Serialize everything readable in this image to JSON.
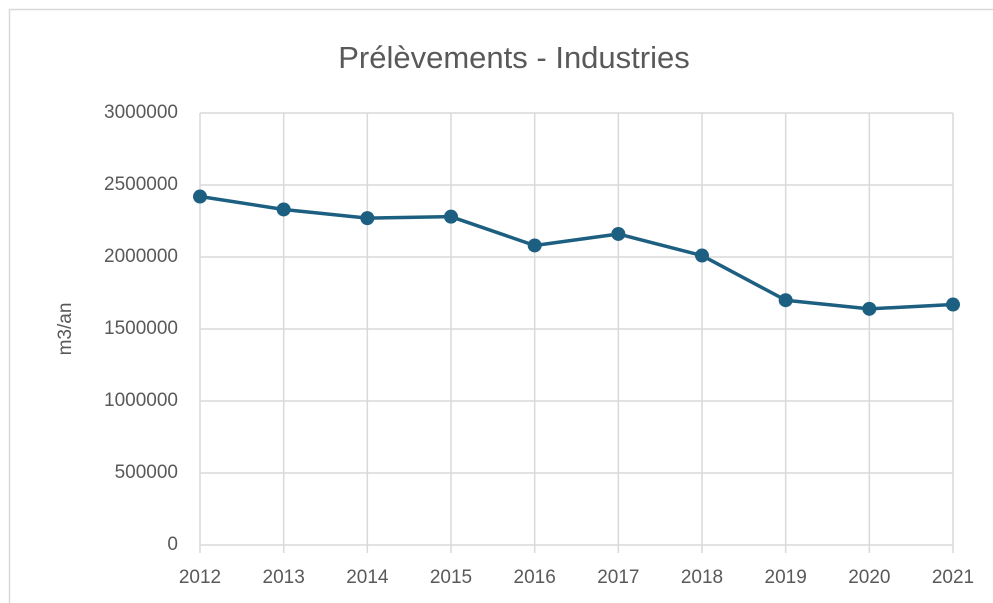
{
  "chart_data": {
    "type": "line",
    "title": "Prélèvements - Industries",
    "y_label": "m3/an",
    "x": [
      2012,
      2013,
      2014,
      2015,
      2016,
      2017,
      2018,
      2019,
      2020,
      2021
    ],
    "values": [
      2420000,
      2330000,
      2270000,
      2280000,
      2080000,
      2160000,
      2010000,
      1700000,
      1640000,
      1670000
    ],
    "color": "#1d5f80",
    "xlim": [
      2012,
      2021
    ],
    "xticks": [
      2012,
      2013,
      2014,
      2015,
      2016,
      2017,
      2018,
      2019,
      2020,
      2021
    ],
    "ylim": [
      0,
      3000000
    ],
    "yticks": [
      0,
      500000,
      1000000,
      1500000,
      2000000,
      2500000,
      3000000
    ],
    "grid": true
  }
}
